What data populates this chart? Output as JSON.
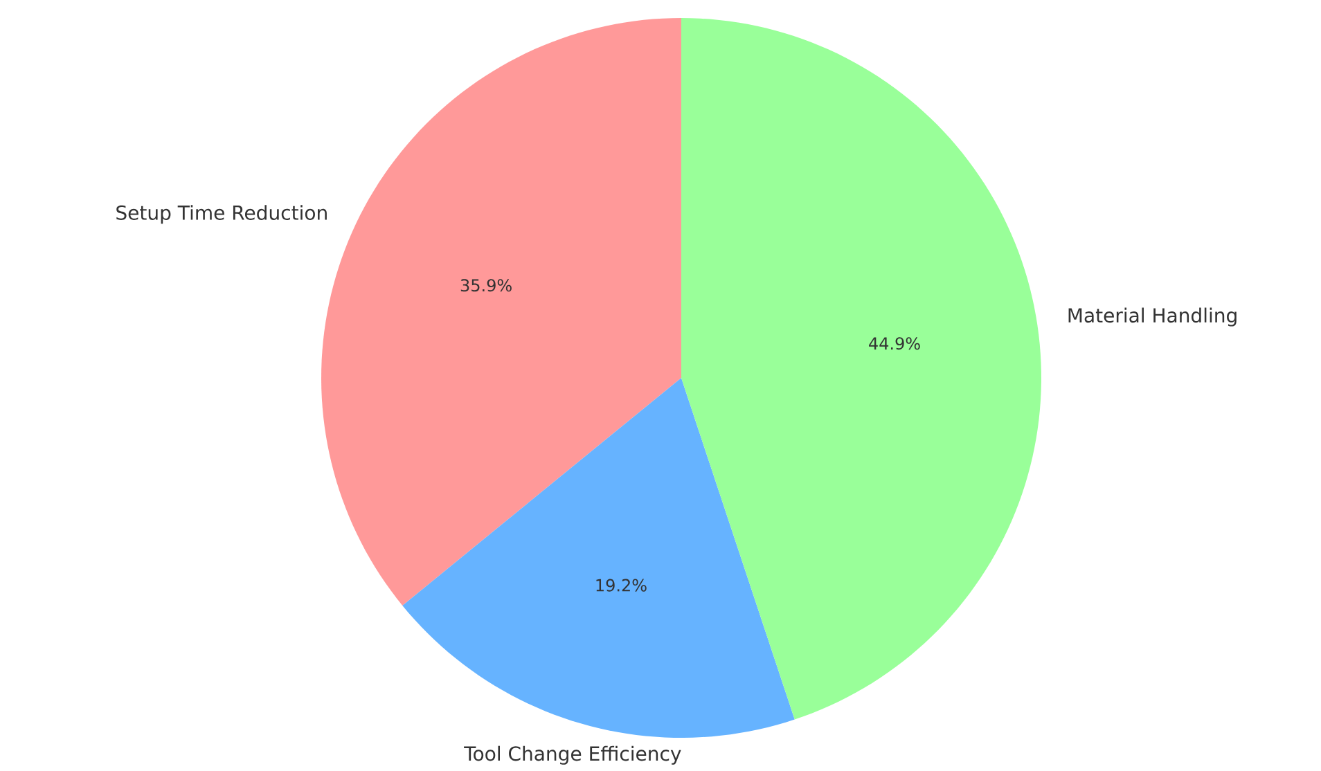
{
  "chart_data": {
    "type": "pie",
    "categories": [
      "Setup Time Reduction",
      "Tool Change Efficiency",
      "Material Handling"
    ],
    "values": [
      35.9,
      19.2,
      44.9
    ],
    "colors": [
      "#ff9999",
      "#66b3ff",
      "#99ff99"
    ],
    "value_labels": [
      "35.9%",
      "19.2%",
      "44.9%"
    ]
  }
}
